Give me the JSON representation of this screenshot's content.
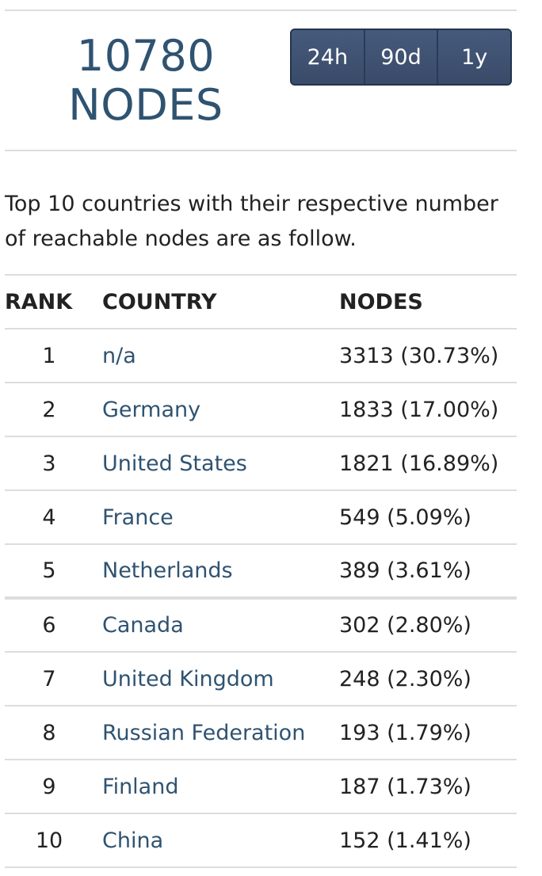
{
  "summary": {
    "node_count": "10780",
    "node_unit": "NODES"
  },
  "range_selector": {
    "options": [
      {
        "label": "24h"
      },
      {
        "label": "90d"
      },
      {
        "label": "1y"
      }
    ]
  },
  "intro_text": "Top 10 countries with their respective number of reachable nodes are as follow.",
  "table": {
    "headers": {
      "rank": "RANK",
      "country": "COUNTRY",
      "nodes": "NODES"
    },
    "rows": [
      {
        "rank": "1",
        "country": "n/a",
        "nodes": "3313 (30.73%)"
      },
      {
        "rank": "2",
        "country": "Germany",
        "nodes": "1833 (17.00%)"
      },
      {
        "rank": "3",
        "country": "United States",
        "nodes": "1821 (16.89%)"
      },
      {
        "rank": "4",
        "country": "France",
        "nodes": "549 (5.09%)"
      },
      {
        "rank": "5",
        "country": "Netherlands",
        "nodes": "389 (3.61%)"
      },
      {
        "rank": "6",
        "country": "Canada",
        "nodes": "302 (2.80%)"
      },
      {
        "rank": "7",
        "country": "United Kingdom",
        "nodes": "248 (2.30%)"
      },
      {
        "rank": "8",
        "country": "Russian Federation",
        "nodes": "193 (1.79%)"
      },
      {
        "rank": "9",
        "country": "Finland",
        "nodes": "187 (1.73%)"
      },
      {
        "rank": "10",
        "country": "China",
        "nodes": "152 (1.41%)"
      }
    ]
  },
  "colors": {
    "accent": "#2f5371",
    "button_bg": "#3e5070",
    "divider": "#dddddd"
  }
}
